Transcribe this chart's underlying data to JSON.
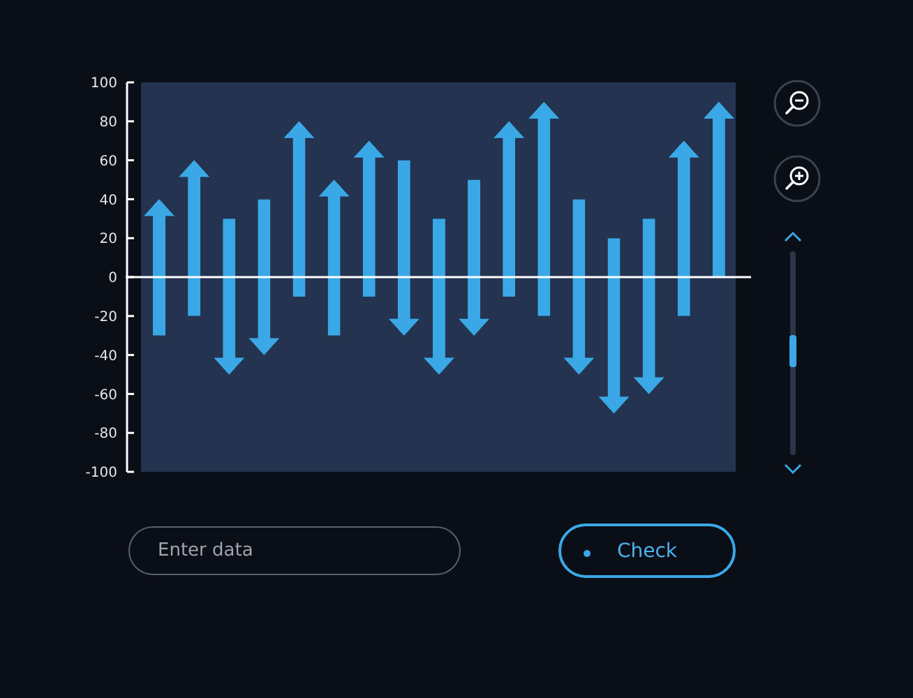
{
  "chart_data": {
    "type": "bar",
    "categories": [
      null,
      null,
      null,
      null,
      null,
      null,
      null,
      null,
      null,
      null,
      null,
      null,
      null,
      null,
      null,
      null,
      null
    ],
    "base": [
      -30,
      -20,
      30,
      40,
      -10,
      -30,
      -10,
      60,
      30,
      50,
      -10,
      -20,
      40,
      20,
      30,
      -20,
      0
    ],
    "values": [
      70,
      80,
      -80,
      -80,
      90,
      80,
      80,
      -90,
      -80,
      -80,
      90,
      110,
      -90,
      -90,
      -90,
      90,
      90
    ],
    "color": "#3aa8e6",
    "ylim": [
      -100,
      100
    ],
    "yticks": [
      -100,
      -80,
      -60,
      -40,
      -20,
      0,
      20,
      40,
      60,
      80,
      100
    ],
    "tick_labels": "y",
    "ref_lines": [
      {
        "axis": "y",
        "value": 0,
        "color": "#ffffff"
      }
    ],
    "annotations": [
      "Enter data",
      "Check"
    ]
  }
}
